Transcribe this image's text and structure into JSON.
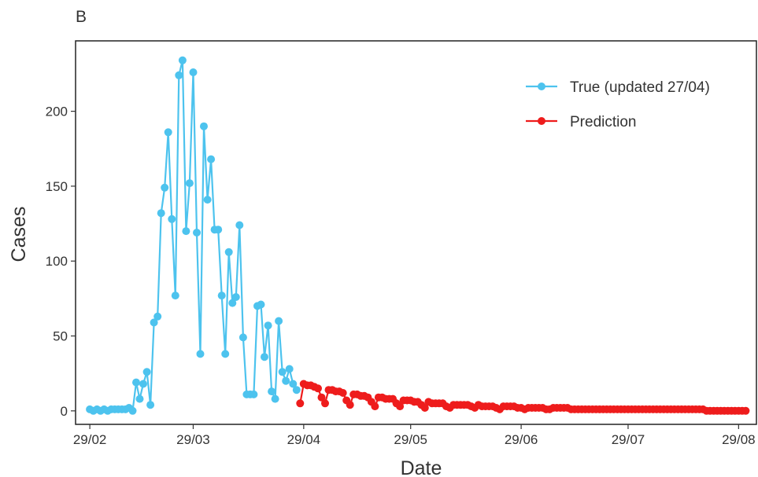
{
  "panel_label": "B",
  "chart_data": {
    "type": "line",
    "title": "",
    "xlabel": "Date",
    "ylabel": "Cases",
    "grid": false,
    "legend_position": "top-right",
    "xlim": [
      "2020-02-25",
      "2020-09-03"
    ],
    "ylim": [
      -9,
      247
    ],
    "x_ticks": [
      {
        "date": "2020-02-29",
        "label": "29/02"
      },
      {
        "date": "2020-03-29",
        "label": "29/03"
      },
      {
        "date": "2020-04-29",
        "label": "29/04"
      },
      {
        "date": "2020-05-29",
        "label": "29/05"
      },
      {
        "date": "2020-06-29",
        "label": "29/06"
      },
      {
        "date": "2020-07-29",
        "label": "29/07"
      },
      {
        "date": "2020-08-29",
        "label": "29/08"
      }
    ],
    "y_ticks": [
      0,
      50,
      100,
      150,
      200
    ],
    "series": [
      {
        "name": "True (updated 27/04)",
        "color": "#4dc3ee",
        "points": [
          [
            "2020-02-29",
            1
          ],
          [
            "2020-03-01",
            0
          ],
          [
            "2020-03-02",
            1
          ],
          [
            "2020-03-03",
            0
          ],
          [
            "2020-03-04",
            1
          ],
          [
            "2020-03-05",
            0
          ],
          [
            "2020-03-06",
            1
          ],
          [
            "2020-03-07",
            1
          ],
          [
            "2020-03-08",
            1
          ],
          [
            "2020-03-09",
            1
          ],
          [
            "2020-03-10",
            1
          ],
          [
            "2020-03-11",
            2
          ],
          [
            "2020-03-12",
            0
          ],
          [
            "2020-03-13",
            19
          ],
          [
            "2020-03-14",
            8
          ],
          [
            "2020-03-15",
            18
          ],
          [
            "2020-03-16",
            26
          ],
          [
            "2020-03-17",
            4
          ],
          [
            "2020-03-18",
            59
          ],
          [
            "2020-03-19",
            63
          ],
          [
            "2020-03-20",
            132
          ],
          [
            "2020-03-21",
            149
          ],
          [
            "2020-03-22",
            186
          ],
          [
            "2020-03-23",
            128
          ],
          [
            "2020-03-24",
            77
          ],
          [
            "2020-03-25",
            224
          ],
          [
            "2020-03-26",
            234
          ],
          [
            "2020-03-27",
            120
          ],
          [
            "2020-03-28",
            152
          ],
          [
            "2020-03-29",
            226
          ],
          [
            "2020-03-30",
            119
          ],
          [
            "2020-03-31",
            38
          ],
          [
            "2020-04-01",
            190
          ],
          [
            "2020-04-02",
            141
          ],
          [
            "2020-04-03",
            168
          ],
          [
            "2020-04-04",
            121
          ],
          [
            "2020-04-05",
            121
          ],
          [
            "2020-04-06",
            77
          ],
          [
            "2020-04-07",
            38
          ],
          [
            "2020-04-08",
            106
          ],
          [
            "2020-04-09",
            72
          ],
          [
            "2020-04-10",
            76
          ],
          [
            "2020-04-11",
            124
          ],
          [
            "2020-04-12",
            49
          ],
          [
            "2020-04-13",
            11
          ],
          [
            "2020-04-14",
            11
          ],
          [
            "2020-04-15",
            11
          ],
          [
            "2020-04-16",
            70
          ],
          [
            "2020-04-17",
            71
          ],
          [
            "2020-04-18",
            36
          ],
          [
            "2020-04-19",
            57
          ],
          [
            "2020-04-20",
            13
          ],
          [
            "2020-04-21",
            8
          ],
          [
            "2020-04-22",
            60
          ],
          [
            "2020-04-23",
            26
          ],
          [
            "2020-04-24",
            20
          ],
          [
            "2020-04-25",
            28
          ],
          [
            "2020-04-26",
            18
          ],
          [
            "2020-04-27",
            14
          ]
        ]
      },
      {
        "name": "Prediction",
        "color": "#ee1c1c",
        "points": [
          [
            "2020-04-28",
            5
          ],
          [
            "2020-04-29",
            18
          ],
          [
            "2020-04-30",
            17
          ],
          [
            "2020-05-01",
            17
          ],
          [
            "2020-05-02",
            16
          ],
          [
            "2020-05-03",
            15
          ],
          [
            "2020-05-04",
            9
          ],
          [
            "2020-05-05",
            5
          ],
          [
            "2020-05-06",
            14
          ],
          [
            "2020-05-07",
            14
          ],
          [
            "2020-05-08",
            13
          ],
          [
            "2020-05-09",
            13
          ],
          [
            "2020-05-10",
            12
          ],
          [
            "2020-05-11",
            7
          ],
          [
            "2020-05-12",
            4
          ],
          [
            "2020-05-13",
            11
          ],
          [
            "2020-05-14",
            11
          ],
          [
            "2020-05-15",
            10
          ],
          [
            "2020-05-16",
            10
          ],
          [
            "2020-05-17",
            9
          ],
          [
            "2020-05-18",
            6
          ],
          [
            "2020-05-19",
            3
          ],
          [
            "2020-05-20",
            9
          ],
          [
            "2020-05-21",
            9
          ],
          [
            "2020-05-22",
            8
          ],
          [
            "2020-05-23",
            8
          ],
          [
            "2020-05-24",
            8
          ],
          [
            "2020-05-25",
            5
          ],
          [
            "2020-05-26",
            3
          ],
          [
            "2020-05-27",
            7
          ],
          [
            "2020-05-28",
            7
          ],
          [
            "2020-05-29",
            7
          ],
          [
            "2020-05-30",
            6
          ],
          [
            "2020-05-31",
            6
          ],
          [
            "2020-06-01",
            4
          ],
          [
            "2020-06-02",
            2
          ],
          [
            "2020-06-03",
            6
          ],
          [
            "2020-06-04",
            5
          ],
          [
            "2020-06-05",
            5
          ],
          [
            "2020-06-06",
            5
          ],
          [
            "2020-06-07",
            5
          ],
          [
            "2020-06-08",
            3
          ],
          [
            "2020-06-09",
            2
          ],
          [
            "2020-06-10",
            4
          ],
          [
            "2020-06-11",
            4
          ],
          [
            "2020-06-12",
            4
          ],
          [
            "2020-06-13",
            4
          ],
          [
            "2020-06-14",
            4
          ],
          [
            "2020-06-15",
            3
          ],
          [
            "2020-06-16",
            2
          ],
          [
            "2020-06-17",
            4
          ],
          [
            "2020-06-18",
            3
          ],
          [
            "2020-06-19",
            3
          ],
          [
            "2020-06-20",
            3
          ],
          [
            "2020-06-21",
            3
          ],
          [
            "2020-06-22",
            2
          ],
          [
            "2020-06-23",
            1
          ],
          [
            "2020-06-24",
            3
          ],
          [
            "2020-06-25",
            3
          ],
          [
            "2020-06-26",
            3
          ],
          [
            "2020-06-27",
            3
          ],
          [
            "2020-06-28",
            2
          ],
          [
            "2020-06-29",
            2
          ],
          [
            "2020-06-30",
            1
          ],
          [
            "2020-07-01",
            2
          ],
          [
            "2020-07-02",
            2
          ],
          [
            "2020-07-03",
            2
          ],
          [
            "2020-07-04",
            2
          ],
          [
            "2020-07-05",
            2
          ],
          [
            "2020-07-06",
            1
          ],
          [
            "2020-07-07",
            1
          ],
          [
            "2020-07-08",
            2
          ],
          [
            "2020-07-09",
            2
          ],
          [
            "2020-07-10",
            2
          ],
          [
            "2020-07-11",
            2
          ],
          [
            "2020-07-12",
            2
          ],
          [
            "2020-07-13",
            1
          ],
          [
            "2020-07-14",
            1
          ],
          [
            "2020-07-15",
            1
          ],
          [
            "2020-07-16",
            1
          ],
          [
            "2020-07-17",
            1
          ],
          [
            "2020-07-18",
            1
          ],
          [
            "2020-07-19",
            1
          ],
          [
            "2020-07-20",
            1
          ],
          [
            "2020-07-21",
            1
          ],
          [
            "2020-07-22",
            1
          ],
          [
            "2020-07-23",
            1
          ],
          [
            "2020-07-24",
            1
          ],
          [
            "2020-07-25",
            1
          ],
          [
            "2020-07-26",
            1
          ],
          [
            "2020-07-27",
            1
          ],
          [
            "2020-07-28",
            1
          ],
          [
            "2020-07-29",
            1
          ],
          [
            "2020-07-30",
            1
          ],
          [
            "2020-07-31",
            1
          ],
          [
            "2020-08-01",
            1
          ],
          [
            "2020-08-02",
            1
          ],
          [
            "2020-08-03",
            1
          ],
          [
            "2020-08-04",
            1
          ],
          [
            "2020-08-05",
            1
          ],
          [
            "2020-08-06",
            1
          ],
          [
            "2020-08-07",
            1
          ],
          [
            "2020-08-08",
            1
          ],
          [
            "2020-08-09",
            1
          ],
          [
            "2020-08-10",
            1
          ],
          [
            "2020-08-11",
            1
          ],
          [
            "2020-08-12",
            1
          ],
          [
            "2020-08-13",
            1
          ],
          [
            "2020-08-14",
            1
          ],
          [
            "2020-08-15",
            1
          ],
          [
            "2020-08-16",
            1
          ],
          [
            "2020-08-17",
            1
          ],
          [
            "2020-08-18",
            1
          ],
          [
            "2020-08-19",
            1
          ],
          [
            "2020-08-20",
            0
          ],
          [
            "2020-08-21",
            0
          ],
          [
            "2020-08-22",
            0
          ],
          [
            "2020-08-23",
            0
          ],
          [
            "2020-08-24",
            0
          ],
          [
            "2020-08-25",
            0
          ],
          [
            "2020-08-26",
            0
          ],
          [
            "2020-08-27",
            0
          ],
          [
            "2020-08-28",
            0
          ],
          [
            "2020-08-29",
            0
          ],
          [
            "2020-08-30",
            0
          ],
          [
            "2020-08-31",
            0
          ]
        ]
      }
    ]
  }
}
